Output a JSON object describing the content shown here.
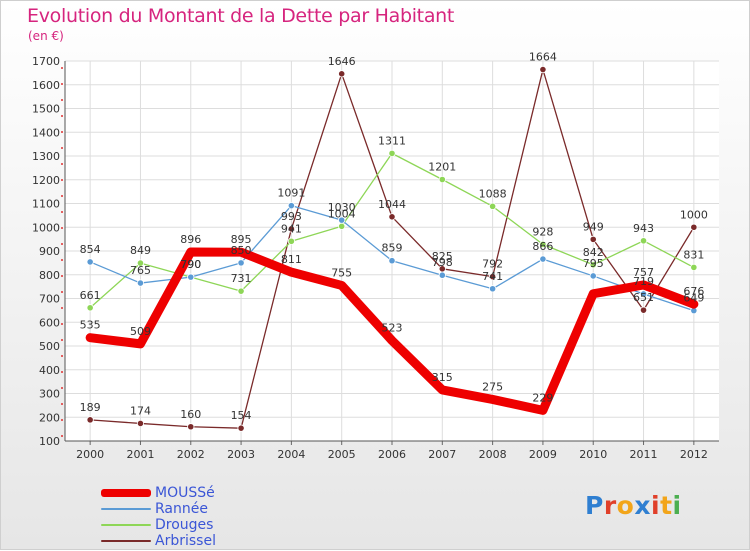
{
  "header": {
    "title": "Evolution du Montant de la Dette par Habitant",
    "unit": "(en €)"
  },
  "logo": {
    "letters": [
      "P",
      "r",
      "o",
      "x",
      "i",
      "t",
      "i"
    ],
    "colors": [
      "#2f7fd1",
      "#e0402a",
      "#f2a51a",
      "#2f7fd1",
      "#e0402a",
      "#f2a51a",
      "#4caf50"
    ]
  },
  "chart_data": {
    "type": "line",
    "categories": [
      "2000",
      "2001",
      "2002",
      "2003",
      "2004",
      "2005",
      "2006",
      "2007",
      "2008",
      "2009",
      "2010",
      "2011",
      "2012"
    ],
    "ylim": [
      100,
      1700
    ],
    "yticks": [
      "100",
      "200",
      "300",
      "400",
      "500",
      "600",
      "700",
      "800",
      "900",
      "1000",
      "1100",
      "1200",
      "1300",
      "1400",
      "1500",
      "1600",
      "1700"
    ],
    "grid": true,
    "legend_position": "bottom-left",
    "series": [
      {
        "name": "MOUSSé",
        "color": "#ee0000",
        "values": [
          535,
          509,
          896,
          895,
          811,
          755,
          523,
          315,
          275,
          229,
          720,
          757,
          676
        ],
        "labels": [
          "535",
          "509",
          "896",
          "895",
          "811",
          "755",
          "523",
          "315",
          "275",
          "229",
          "",
          "757",
          "676"
        ]
      },
      {
        "name": "Rannée",
        "color": "#5b9bd5",
        "values": [
          854,
          765,
          790,
          850,
          1091,
          1030,
          859,
          798,
          741,
          866,
          795,
          719,
          649
        ],
        "labels": [
          "854",
          "765",
          "790",
          "850",
          "1091",
          "1030",
          "859",
          "798",
          "741",
          "866",
          "795",
          "719",
          "649"
        ]
      },
      {
        "name": "Drouges",
        "color": "#8ed657",
        "values": [
          661,
          849,
          790,
          731,
          941,
          1004,
          1311,
          1201,
          1088,
          928,
          842,
          943,
          831
        ],
        "labels": [
          "661",
          "849",
          "790",
          "731",
          "941",
          "1004",
          "1311",
          "1201",
          "1088",
          "928",
          "842",
          "943",
          "831"
        ]
      },
      {
        "name": "Arbrissel",
        "color": "#7a2a2a",
        "values": [
          189,
          174,
          160,
          154,
          993,
          1646,
          1044,
          825,
          792,
          1664,
          949,
          651,
          1000
        ],
        "labels": [
          "189",
          "174",
          "160",
          "154",
          "993",
          "1646",
          "1044",
          "825",
          "792",
          "1664",
          "949",
          "651",
          "1000"
        ]
      }
    ]
  }
}
